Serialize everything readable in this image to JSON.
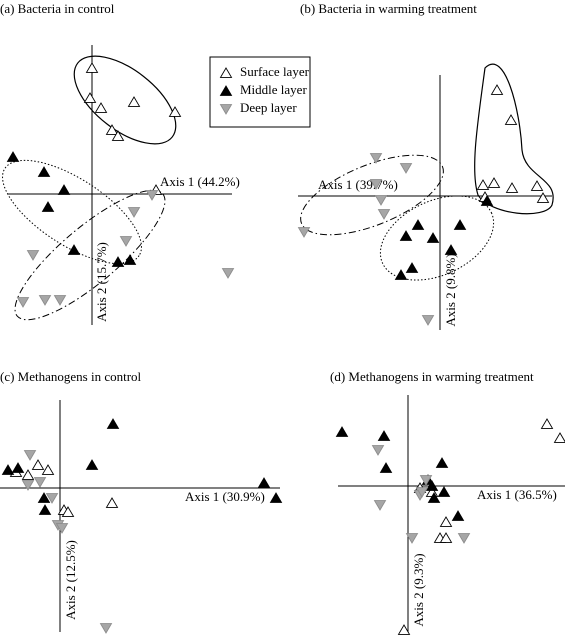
{
  "chart_data": [
    {
      "type": "scatter",
      "title": "(a) Bacteria in control",
      "xlabel": "Axis 1 (44.2%)",
      "ylabel": "Axis 2 (15.7%)",
      "xlim": [
        -84,
        140
      ],
      "ylim": [
        -131,
        149
      ],
      "legend": "upper right",
      "series": [
        {
          "name": "Surface layer",
          "color": "#ffffff",
          "edgecolor": "#000000",
          "marker": "triangle-up",
          "x": [
            0,
            -2,
            9,
            42,
            83,
            20,
            26,
            64
          ],
          "y": [
            126,
            96,
            86,
            92,
            82,
            64,
            58,
            4
          ]
        },
        {
          "name": "Middle layer",
          "color": "#000000",
          "edgecolor": "#000000",
          "marker": "triangle-up",
          "x": [
            -79,
            -48,
            -28,
            -44,
            -18,
            26,
            38
          ],
          "y": [
            37,
            22,
            4,
            -13,
            -56,
            -68,
            -66
          ]
        },
        {
          "name": "Deep layer",
          "color": "#a6a6a6",
          "edgecolor": "#8c8c8c",
          "marker": "triangle-down",
          "x": [
            42,
            60,
            34,
            -59,
            -69,
            -47,
            -32,
            136
          ],
          "y": [
            -18,
            -1,
            -47,
            -61,
            -108,
            -106,
            -106,
            -79
          ]
        }
      ]
    },
    {
      "type": "scatter",
      "title": "(b) Bacteria in warming treatment",
      "xlabel": "Axis 1 (39.7%)",
      "ylabel": "Axis 2 (9.8%)",
      "xlim": [
        -142,
        112
      ],
      "ylim": [
        -134,
        121
      ],
      "series": [
        {
          "color": "#ffffff",
          "edgecolor": "#000000",
          "marker": "triangle-up",
          "x": [
            57,
            71,
            43,
            54,
            72,
            97,
            103,
            45
          ],
          "y": [
            106,
            76,
            11,
            13,
            8,
            10,
            -2,
            -1
          ]
        },
        {
          "color": "#000000",
          "edgecolor": "#000000",
          "marker": "triangle-up",
          "x": [
            47,
            -22,
            -34,
            -7,
            20,
            -28,
            -39,
            11
          ],
          "y": [
            -5,
            -29,
            -40,
            -42,
            -29,
            -72,
            -79,
            -54
          ]
        },
        {
          "color": "#a6a6a6",
          "edgecolor": "#8c8c8c",
          "marker": "triangle-down",
          "x": [
            -64,
            -34,
            -64,
            -56,
            -136,
            -59,
            -12
          ],
          "y": [
            38,
            28,
            12,
            -18,
            -36,
            -4,
            -124
          ]
        }
      ]
    },
    {
      "type": "scatter",
      "title": "(c) Methanogens in control",
      "xlabel": "Axis 1 (30.9%)",
      "ylabel": "Axis 2 (12.5%)",
      "xlim": [
        -60,
        220
      ],
      "ylim": [
        -144,
        88
      ],
      "series": [
        {
          "color": "#ffffff",
          "edgecolor": "#000000",
          "marker": "triangle-up",
          "x": [
            -22,
            -12,
            -44,
            -32,
            4,
            8,
            52
          ],
          "y": [
            23,
            18,
            16,
            13,
            -22,
            -24,
            -15
          ]
        },
        {
          "color": "#000000",
          "edgecolor": "#000000",
          "marker": "triangle-up",
          "x": [
            53,
            32,
            -52,
            -42,
            204,
            216,
            -16,
            -15
          ],
          "y": [
            64,
            23,
            18,
            20,
            5,
            -10,
            -10,
            -22
          ]
        },
        {
          "color": "#a6a6a6",
          "edgecolor": "#8c8c8c",
          "marker": "triangle-down",
          "x": [
            -30,
            -20,
            -8,
            -2,
            2,
            46,
            -32
          ],
          "y": [
            33,
            6,
            -10,
            -37,
            -40,
            -140,
            3
          ]
        }
      ]
    },
    {
      "type": "scatter",
      "title": "(d) Methanogens in warming treatment",
      "xlabel": "Axis 1 (36.5%)",
      "ylabel": "Axis 2 (9.3%)",
      "xlim": [
        -70,
        157
      ],
      "ylim": [
        -146,
        91
      ],
      "series": [
        {
          "color": "#ffffff",
          "edgecolor": "#000000",
          "marker": "triangle-up",
          "x": [
            139,
            152,
            12,
            24,
            38,
            32,
            38,
            -4
          ],
          "y": [
            62,
            48,
            -2,
            -6,
            -36,
            -52,
            -52,
            -144
          ]
        },
        {
          "color": "#000000",
          "edgecolor": "#000000",
          "marker": "triangle-up",
          "x": [
            -66,
            -24,
            -22,
            34,
            20,
            26,
            36,
            50,
            24
          ],
          "y": [
            54,
            50,
            18,
            23,
            6,
            -12,
            -6,
            -30,
            0
          ]
        },
        {
          "color": "#a6a6a6",
          "edgecolor": "#8c8c8c",
          "marker": "triangle-down",
          "x": [
            -30,
            -28,
            18,
            12,
            56,
            4,
            14
          ],
          "y": [
            36,
            -19,
            6,
            -9,
            -52,
            -52,
            -6
          ]
        }
      ]
    }
  ]
}
